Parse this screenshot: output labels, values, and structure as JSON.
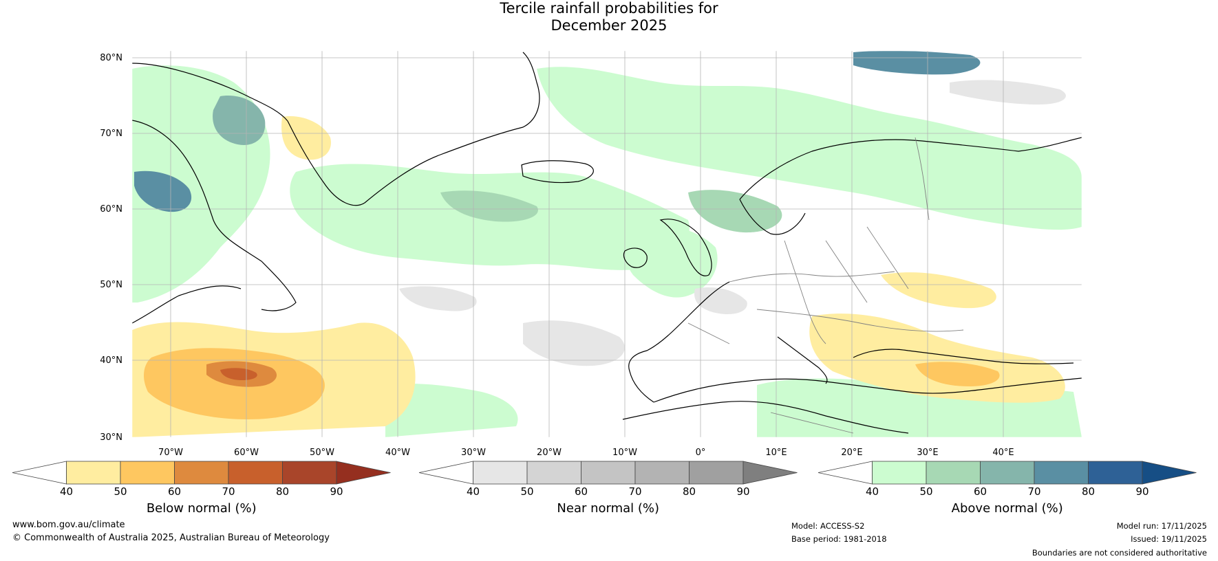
{
  "title": {
    "line1": "Tercile rainfall probabilities for",
    "line2": "December 2025"
  },
  "map": {
    "lat_labels": [
      "80°N",
      "70°N",
      "60°N",
      "50°N",
      "40°N",
      "30°N"
    ],
    "lon_labels": [
      "70°W",
      "60°W",
      "50°W",
      "40°W",
      "30°W",
      "20°W",
      "10°W",
      "0°",
      "10°E",
      "20°E",
      "30°E",
      "40°E"
    ],
    "colors": {
      "ocean_default": "#ffffff",
      "coast": "#000000",
      "border": "#808080"
    }
  },
  "legends": [
    {
      "label": "Below normal (%)",
      "ticks": [
        "40",
        "50",
        "60",
        "70",
        "80",
        "90"
      ],
      "colors": [
        "#ffffff",
        "#ffeda0",
        "#fec760",
        "#de8a3e",
        "#c8602c",
        "#a9452a",
        "#952f1f"
      ]
    },
    {
      "label": "Near normal (%)",
      "ticks": [
        "40",
        "50",
        "60",
        "70",
        "80",
        "90"
      ],
      "colors": [
        "#ffffff",
        "#e6e6e6",
        "#d4d4d4",
        "#c4c4c4",
        "#b3b3b3",
        "#a0a0a0",
        "#7f7f7f"
      ]
    },
    {
      "label": "Above normal (%)",
      "ticks": [
        "40",
        "50",
        "60",
        "70",
        "80",
        "90"
      ],
      "colors": [
        "#ffffff",
        "#ccfcd0",
        "#a7d8b4",
        "#85b5ab",
        "#5a8fa3",
        "#2e6196",
        "#164e85"
      ]
    }
  ],
  "footer": {
    "website": "www.bom.gov.au/climate",
    "copyright": "© Commonwealth of Australia 2025, Australian Bureau of Meteorology",
    "model": "Model: ACCESS-S2",
    "base_period": "Base period: 1981-2018",
    "model_run": "Model run: 17/11/2025",
    "issued": "Issued: 19/11/2025",
    "disclaimer": "Boundaries are not considered authoritative"
  }
}
